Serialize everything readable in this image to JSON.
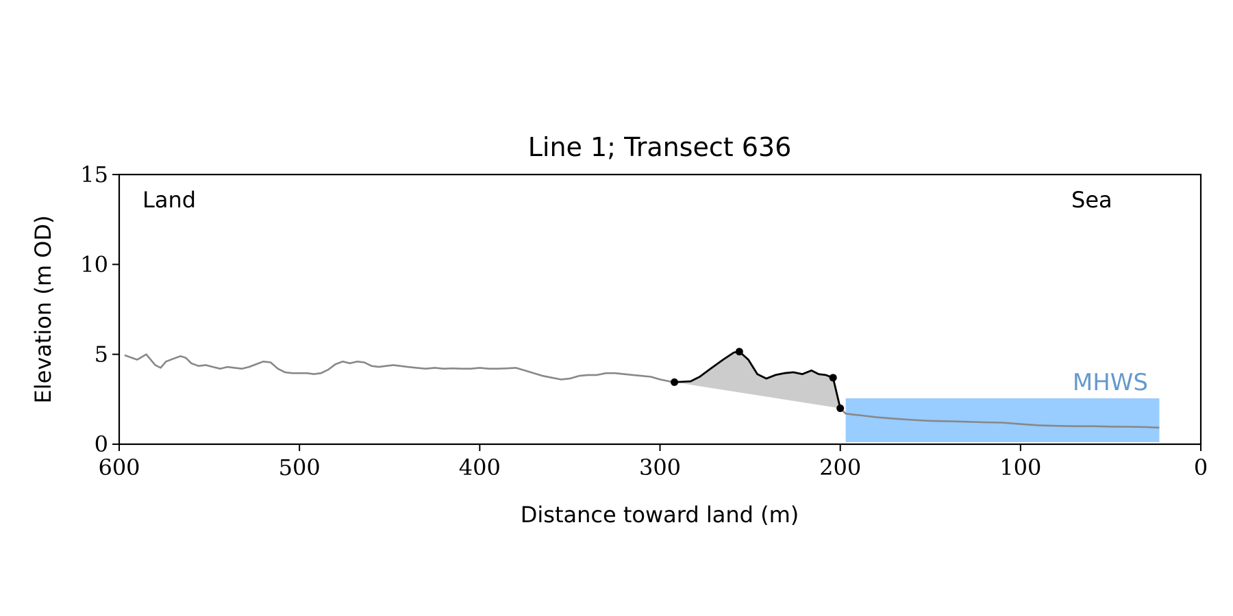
{
  "chart_data": {
    "type": "line",
    "title": "Line 1; Transect 636",
    "xlabel": "Distance toward land (m)",
    "ylabel": "Elevation (m OD)",
    "xlim": [
      600,
      0
    ],
    "ylim": [
      0,
      15
    ],
    "x_ticks": [
      "600",
      "500",
      "400",
      "300",
      "200",
      "100",
      "0"
    ],
    "y_ticks": [
      "15",
      "10",
      "5",
      "0"
    ],
    "annotations": {
      "left": "Land",
      "right": "Sea",
      "mhws_label": "MHWS"
    },
    "mhws": {
      "level": 2.55,
      "x_from": 197,
      "x_to": 23
    },
    "colors": {
      "profile": "#888888",
      "dune": "#000000",
      "dune_fill": "#cccccc",
      "mhws_fill": "#99ccff",
      "mhws_text": "#6699cc"
    },
    "series": [
      {
        "role": "profile",
        "x": [
          597,
          590,
          585,
          580,
          577,
          574,
          570,
          566,
          563,
          560,
          556,
          552,
          548,
          544,
          540,
          536,
          532,
          528,
          524,
          520,
          516,
          512,
          508,
          504,
          500,
          496,
          492,
          488,
          484,
          480,
          476,
          472,
          468,
          464,
          460,
          456,
          452,
          448,
          444,
          440,
          435,
          430,
          425,
          420,
          415,
          410,
          405,
          400,
          395,
          390,
          385,
          380,
          375,
          370,
          365,
          360,
          355,
          350,
          345,
          340,
          335,
          330,
          325,
          320,
          315,
          310,
          305,
          300,
          295,
          292
        ],
        "y": [
          4.95,
          4.7,
          5.0,
          4.4,
          4.25,
          4.6,
          4.75,
          4.9,
          4.8,
          4.5,
          4.35,
          4.4,
          4.3,
          4.2,
          4.3,
          4.25,
          4.2,
          4.3,
          4.45,
          4.6,
          4.55,
          4.2,
          4.0,
          3.95,
          3.95,
          3.95,
          3.9,
          3.95,
          4.15,
          4.45,
          4.6,
          4.5,
          4.6,
          4.55,
          4.35,
          4.3,
          4.35,
          4.4,
          4.35,
          4.3,
          4.25,
          4.2,
          4.25,
          4.2,
          4.22,
          4.2,
          4.2,
          4.25,
          4.2,
          4.2,
          4.22,
          4.25,
          4.1,
          3.95,
          3.8,
          3.7,
          3.6,
          3.65,
          3.8,
          3.85,
          3.85,
          3.95,
          3.95,
          3.9,
          3.85,
          3.8,
          3.75,
          3.6,
          3.5,
          3.45
        ]
      },
      {
        "role": "dune",
        "x": [
          292,
          283,
          278,
          272,
          265,
          259,
          256,
          251,
          246,
          241,
          236,
          231,
          226,
          221,
          216,
          212,
          208,
          204,
          200
        ],
        "y": [
          3.45,
          3.5,
          3.75,
          4.2,
          4.7,
          5.1,
          5.15,
          4.7,
          3.9,
          3.65,
          3.85,
          3.95,
          4.0,
          3.9,
          4.1,
          3.9,
          3.85,
          3.7,
          2.0
        ]
      },
      {
        "role": "profile",
        "x": [
          200,
          197,
          193,
          188,
          180,
          170,
          160,
          150,
          140,
          130,
          120,
          110,
          100,
          90,
          80,
          70,
          60,
          50,
          40,
          30,
          23
        ],
        "y": [
          2.0,
          1.7,
          1.65,
          1.6,
          1.5,
          1.42,
          1.35,
          1.3,
          1.28,
          1.25,
          1.22,
          1.2,
          1.12,
          1.05,
          1.02,
          1.0,
          1.0,
          0.98,
          0.97,
          0.95,
          0.92
        ]
      }
    ],
    "dune_markers": {
      "x": [
        292,
        256,
        204,
        200
      ],
      "y": [
        3.45,
        5.15,
        3.7,
        2.0
      ]
    }
  }
}
